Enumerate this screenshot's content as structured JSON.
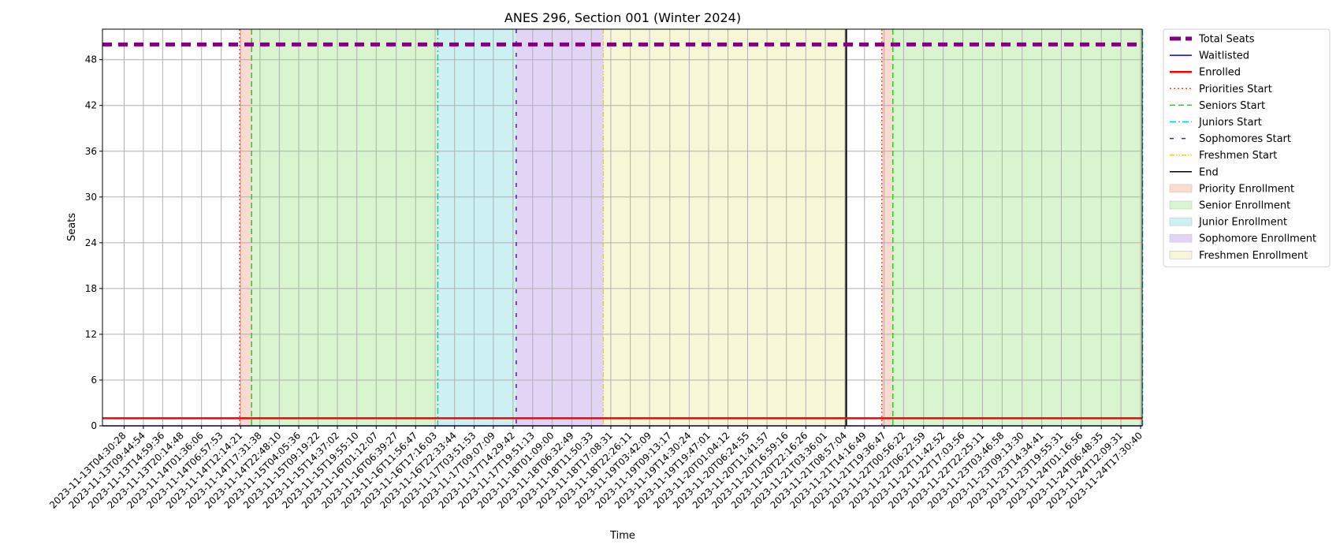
{
  "chart_data": {
    "type": "line",
    "title": "ANES 296, Section 001 (Winter 2024)",
    "xlabel": "Time",
    "ylabel": "Seats",
    "ylim": [
      0,
      52
    ],
    "yticks": [
      0,
      6,
      12,
      18,
      24,
      30,
      36,
      42,
      48
    ],
    "grid": true,
    "legend_position": "outside-right",
    "x_categories": [
      "2023-11-13T04:30:28",
      "2023-11-13T09:44:54",
      "2023-11-13T14:59:36",
      "2023-11-13T20:14:48",
      "2023-11-14T01:36:06",
      "2023-11-14T06:57:53",
      "2023-11-14T12:14:21",
      "2023-11-14T17:31:38",
      "2023-11-14T22:48:10",
      "2023-11-15T04:05:36",
      "2023-11-15T09:19:22",
      "2023-11-15T14:37:02",
      "2023-11-15T19:55:10",
      "2023-11-16T01:12:07",
      "2023-11-16T06:39:27",
      "2023-11-16T11:56:47",
      "2023-11-16T17:16:03",
      "2023-11-16T22:33:44",
      "2023-11-17T03:51:53",
      "2023-11-17T09:07:09",
      "2023-11-17T14:29:42",
      "2023-11-17T19:51:13",
      "2023-11-18T01:09:00",
      "2023-11-18T06:32:49",
      "2023-11-18T11:50:33",
      "2023-11-18T17:08:31",
      "2023-11-18T22:26:11",
      "2023-11-19T03:42:09",
      "2023-11-19T09:13:17",
      "2023-11-19T14:30:24",
      "2023-11-19T19:47:01",
      "2023-11-20T01:04:12",
      "2023-11-20T06:24:55",
      "2023-11-20T11:41:57",
      "2023-11-20T16:59:16",
      "2023-11-20T22:16:26",
      "2023-11-21T03:36:01",
      "2023-11-21T08:57:04",
      "2023-11-21T14:16:49",
      "2023-11-21T19:36:47",
      "2023-11-22T00:56:22",
      "2023-11-22T06:22:59",
      "2023-11-22T11:42:52",
      "2023-11-22T17:03:56",
      "2023-11-22T22:25:11",
      "2023-11-23T03:46:58",
      "2023-11-23T09:13:30",
      "2023-11-23T14:34:41",
      "2023-11-23T19:55:31",
      "2023-11-24T01:16:56",
      "2023-11-24T06:48:35",
      "2023-11-24T12:09:31",
      "2023-11-24T17:30:40"
    ],
    "series": [
      {
        "name": "Total Seats",
        "value": 50,
        "color": "#800080",
        "style": "dashed-thick"
      },
      {
        "name": "Waitlisted",
        "value": 0,
        "color": "#0000ff",
        "style": "solid"
      },
      {
        "name": "Enrolled",
        "value": 1,
        "color": "#ff0000",
        "style": "solid-thick"
      }
    ],
    "regions": [
      {
        "name": "Priority Enrollment",
        "start": "2023-11-14T11:58:00",
        "end": "2023-11-14T15:14:00",
        "color": "#fadbd2"
      },
      {
        "name": "Senior Enrollment",
        "start": "2023-11-14T15:14:00",
        "end": "2023-11-16T17:59:00",
        "color": "#d9f5d0"
      },
      {
        "name": "Junior Enrollment",
        "start": "2023-11-16T17:59:00",
        "end": "2023-11-17T15:22:00",
        "color": "#cdf1f2"
      },
      {
        "name": "Sophomore Enrollment",
        "start": "2023-11-17T15:22:00",
        "end": "2023-11-18T15:05:00",
        "color": "#e1d4f5"
      },
      {
        "name": "Freshmen Enrollment",
        "start": "2023-11-18T15:05:00",
        "end": "2023-11-21T09:18:00",
        "color": "#f7f7d7"
      },
      {
        "name": "Priority Enrollment",
        "start": "2023-11-21T19:01:00",
        "end": "2023-11-21T22:00:00",
        "color": "#fadbd2"
      },
      {
        "name": "Senior Enrollment",
        "start": "2023-11-21T22:00:00",
        "end": "2023-11-24T18:03:00",
        "color": "#d9f5d0"
      }
    ],
    "vlines": [
      {
        "name": "Priorities Start",
        "at": "2023-11-14T11:58:00",
        "color": "#ff4d1a",
        "style": "dotted"
      },
      {
        "name": "Seniors Start",
        "at": "2023-11-14T15:14:00",
        "color": "#22cc22",
        "style": "dashed"
      },
      {
        "name": "Juniors Start",
        "at": "2023-11-16T17:59:00",
        "color": "#00c8d8",
        "style": "dashdot"
      },
      {
        "name": "Sophomores Start",
        "at": "2023-11-17T15:22:00",
        "color": "#5a0fd8",
        "style": "loosedash"
      },
      {
        "name": "Freshmen Start",
        "at": "2023-11-18T15:05:00",
        "color": "#e8d020",
        "style": "dashdotdot"
      },
      {
        "name": "End",
        "at": "2023-11-21T09:18:00",
        "color": "#000000",
        "style": "solid"
      },
      {
        "name": "Priorities Start",
        "at": "2023-11-21T19:01:00",
        "color": "#ff4d1a",
        "style": "dotted"
      },
      {
        "name": "Seniors Start",
        "at": "2023-11-21T22:00:00",
        "color": "#22cc22",
        "style": "dashed"
      },
      {
        "name": "Juniors Start",
        "at": "2023-11-24T18:03:00",
        "color": "#00c8d8",
        "style": "dashdot"
      }
    ],
    "legend": [
      {
        "label": "Total Seats",
        "kind": "line",
        "color": "#800080",
        "style": "dashed-thick"
      },
      {
        "label": "Waitlisted",
        "kind": "line",
        "color": "#0000ff",
        "style": "solid"
      },
      {
        "label": "Enrolled",
        "kind": "line",
        "color": "#ff0000",
        "style": "solid-thick"
      },
      {
        "label": "Priorities Start",
        "kind": "line",
        "color": "#ff4d1a",
        "style": "dotted"
      },
      {
        "label": "Seniors Start",
        "kind": "line",
        "color": "#22cc22",
        "style": "dashed"
      },
      {
        "label": "Juniors Start",
        "kind": "line",
        "color": "#00c8d8",
        "style": "dashdot"
      },
      {
        "label": "Sophomores Start",
        "kind": "line",
        "color": "#5a0fd8",
        "style": "loosedash"
      },
      {
        "label": "Freshmen Start",
        "kind": "line",
        "color": "#e8d020",
        "style": "dashdotdot"
      },
      {
        "label": "End",
        "kind": "line",
        "color": "#000000",
        "style": "solid"
      },
      {
        "label": "Priority Enrollment",
        "kind": "patch",
        "color": "#fadbd2"
      },
      {
        "label": "Senior Enrollment",
        "kind": "patch",
        "color": "#d9f5d0"
      },
      {
        "label": "Junior Enrollment",
        "kind": "patch",
        "color": "#cdf1f2"
      },
      {
        "label": "Sophomore Enrollment",
        "kind": "patch",
        "color": "#e1d4f5"
      },
      {
        "label": "Freshmen Enrollment",
        "kind": "patch",
        "color": "#f7f7d7"
      }
    ]
  }
}
